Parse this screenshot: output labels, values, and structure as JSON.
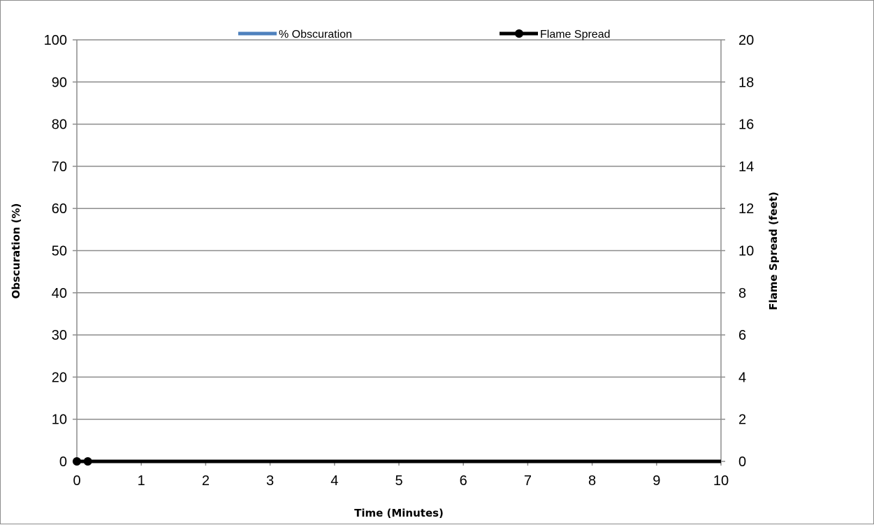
{
  "chart_data": {
    "type": "line",
    "title": "",
    "xlabel": "Time (Minutes)",
    "ylabel": "Obscuration (%)",
    "y2label": "Flame Spread (feet)",
    "xlim": [
      0,
      10
    ],
    "ylim": [
      0,
      100
    ],
    "y2lim": [
      0,
      20
    ],
    "x_ticks": [
      "0",
      "1",
      "2",
      "3",
      "4",
      "5",
      "6",
      "7",
      "8",
      "9",
      "10"
    ],
    "y_ticks": [
      "0",
      "10",
      "20",
      "30",
      "40",
      "50",
      "60",
      "70",
      "80",
      "90",
      "100"
    ],
    "y2_ticks": [
      "0",
      "2",
      "4",
      "6",
      "8",
      "10",
      "12",
      "14",
      "16",
      "18",
      "20"
    ],
    "grid": true,
    "legend_position": "top",
    "series": [
      {
        "name": "% Obscuration",
        "axis": "left",
        "color": "#4f81bd",
        "marker": "none",
        "x": [
          0,
          10
        ],
        "y": [
          0,
          0
        ]
      },
      {
        "name": "Flame Spread",
        "axis": "right",
        "color": "#000000",
        "marker": "circle",
        "x": [
          0,
          0.17,
          10
        ],
        "y": [
          0,
          0,
          0
        ],
        "marker_x": [
          0,
          0.17
        ]
      }
    ]
  }
}
